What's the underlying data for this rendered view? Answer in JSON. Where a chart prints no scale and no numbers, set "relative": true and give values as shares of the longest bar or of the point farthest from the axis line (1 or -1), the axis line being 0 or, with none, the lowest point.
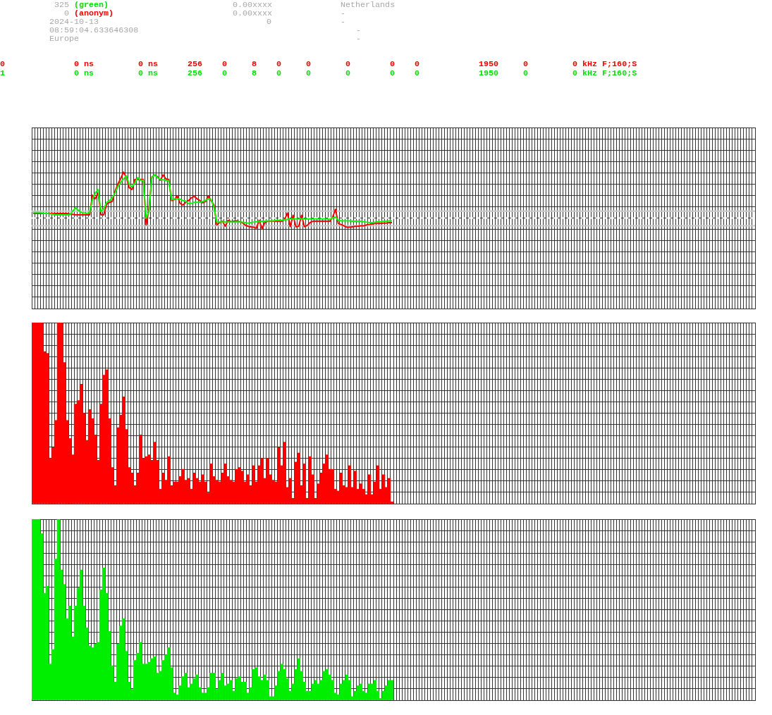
{
  "chart_data": [
    {
      "type": "other",
      "annotations": [
        "325",
        "(green)",
        "0",
        "(anonym)",
        "2024-10-13",
        "08:59:04.633646308",
        "Europe",
        "0.00xxxx",
        "0.00xxxx",
        "0",
        "Netherlands",
        "-",
        "-",
        "-",
        "-",
        "0",
        "0 ns",
        "0 ns",
        "256",
        "0",
        "8",
        "0",
        "0",
        "0",
        "0",
        "0",
        "1950",
        "0",
        "0 kHz F;160;S",
        "1",
        "0 ns",
        "0 ns",
        "256",
        "0",
        "8",
        "0",
        "0",
        "0",
        "0",
        "0",
        "1950",
        "0",
        "0 kHz F;160;S"
      ]
    },
    {
      "type": "line",
      "relative": true,
      "grid": true,
      "tick_labels": false,
      "ref_lines": [
        {
          "axis": "y",
          "value": 0,
          "color": "#ffffff",
          "line_style": "dashed"
        },
        {
          "axis": "y",
          "value": 0.15,
          "color": "#c8c8c8",
          "line_style": "solid"
        },
        {
          "axis": "y",
          "value": -0.17,
          "color": "#c8c8c8",
          "line_style": "solid"
        }
      ],
      "categories": [
        null,
        null,
        null,
        null,
        null,
        null,
        null,
        null,
        null,
        null,
        null,
        null,
        null,
        null,
        null,
        null,
        null,
        null,
        null,
        null,
        null,
        null,
        null,
        null,
        null,
        null,
        null,
        null,
        null,
        null,
        null,
        null,
        null,
        null,
        null,
        null,
        null,
        null,
        null,
        null,
        null,
        null,
        null,
        null,
        null,
        null,
        null,
        null,
        null,
        null,
        null,
        null,
        null,
        null,
        null,
        null,
        null,
        null,
        null,
        null,
        null,
        null,
        null,
        null,
        null,
        null,
        null,
        null,
        null,
        null,
        null,
        null,
        null,
        null,
        null,
        null,
        null,
        null,
        null,
        null,
        null,
        null,
        null,
        null,
        null,
        null,
        null,
        null,
        null,
        null,
        null,
        null,
        null,
        null,
        null,
        null,
        null,
        null,
        null,
        null,
        null,
        null,
        null,
        null,
        null,
        null,
        null,
        null,
        null,
        null,
        null,
        null,
        null,
        null,
        null,
        null,
        null,
        null,
        null,
        null,
        null,
        null,
        null,
        null,
        null,
        null,
        null,
        null,
        null,
        null,
        null,
        null,
        null,
        null,
        null,
        null,
        null,
        null,
        null,
        null,
        null,
        null,
        null,
        null,
        null,
        null,
        null,
        null,
        null,
        null,
        null,
        null,
        null,
        null,
        null,
        null,
        null,
        null,
        null,
        null,
        null,
        null,
        null,
        null,
        null,
        null,
        null,
        null,
        null,
        null,
        null,
        null,
        null,
        null,
        null,
        null,
        null,
        null,
        null,
        null,
        null,
        null,
        null,
        null,
        null,
        null,
        null,
        null,
        null,
        null,
        null,
        null,
        null,
        null,
        null,
        null,
        null,
        null,
        null,
        null,
        null,
        null,
        null,
        null,
        null,
        null,
        null,
        null,
        null,
        null,
        null,
        null,
        null,
        null,
        null,
        null,
        null,
        null,
        null,
        null,
        null,
        null,
        null,
        null,
        null,
        null,
        null,
        null,
        null,
        null,
        null,
        null,
        null,
        null,
        null,
        null,
        null,
        null,
        null,
        null,
        null,
        null,
        null,
        null,
        null,
        null,
        null,
        null,
        null,
        null,
        null,
        null,
        null,
        null,
        null,
        null
      ],
      "series": [
        {
          "color": "#ff0000",
          "values": [
            0.1,
            0.1,
            0.1,
            0.1,
            0.1,
            0.1,
            0.1,
            0.1,
            0.1,
            0.1,
            0.1,
            0.1,
            0.1,
            0.09,
            0.08,
            0.07,
            0.07,
            0.07,
            0.07,
            0.07,
            0.07,
            0.5,
            0.42,
            0.55,
            0.07,
            0.07,
            0.3,
            0.34,
            0.36,
            0.58,
            0.74,
            0.86,
            1,
            0.88,
            0.66,
            0.62,
            0.84,
            0.84,
            0.84,
            0.84,
            -0.15,
            0.2,
            0.89,
            0.94,
            0.9,
            0.82,
            0.94,
            0.85,
            0.84,
            0.38,
            0.4,
            0.48,
            0.32,
            0.28,
            0.34,
            0.38,
            0.44,
            0.47,
            0.42,
            0.38,
            0.33,
            0.36,
            0.48,
            0.38,
            0.28,
            -0.15,
            -0.1,
            -0.07,
            -0.18,
            -0.05,
            -0.08,
            -0.07,
            -0.06,
            -0.08,
            -0.1,
            -0.15,
            -0.18,
            -0.19,
            -0.2,
            -0.22,
            -0.05,
            -0.23,
            -0.1,
            -0.07,
            -0.07,
            -0.07,
            -0.07,
            -0.07,
            -0.07,
            -0.03,
            0.11,
            -0.19,
            0.06,
            -0.19,
            -0.18,
            0.06,
            -0.19,
            -0.16,
            -0.1,
            -0.07,
            -0.07,
            -0.07,
            -0.07,
            -0.07,
            -0.07,
            -0.07,
            0.02,
            0.19,
            -0.12,
            -0.14,
            -0.17,
            -0.2,
            -0.2,
            -0.19,
            -0.18,
            -0.18,
            -0.17,
            -0.17,
            -0.15,
            -0.14,
            -0.13,
            -0.12,
            -0.12,
            -0.12,
            -0.11,
            -0.11,
            -0.1,
            -0.1,
            null,
            null,
            null,
            null,
            null,
            null,
            null,
            null,
            null,
            null,
            null,
            null,
            null,
            null,
            null,
            null,
            null,
            null,
            null,
            null,
            null,
            null,
            null,
            null,
            null,
            null,
            null,
            null,
            null,
            null,
            null,
            null,
            null,
            null,
            null,
            null,
            null,
            null,
            null,
            null,
            null,
            null,
            null,
            null,
            null,
            null,
            null,
            null,
            null,
            null,
            null,
            null,
            null,
            null,
            null,
            null,
            null,
            null,
            null,
            null,
            null,
            null,
            null,
            null,
            null,
            null,
            null,
            null,
            null,
            null,
            null,
            null,
            null,
            null,
            null,
            null,
            null,
            null,
            null,
            null,
            null,
            null,
            null,
            null,
            null,
            null,
            null,
            null,
            null,
            null,
            null,
            null,
            null,
            null,
            null,
            null,
            null,
            null,
            null,
            null,
            null,
            null,
            null,
            null,
            null,
            null,
            null,
            null,
            null,
            null,
            null,
            null,
            null,
            null,
            null,
            null,
            null,
            null,
            null,
            null,
            null,
            null,
            null,
            null,
            null,
            null,
            null,
            null
          ]
        },
        {
          "color": "#00ff00",
          "values": [
            0.12,
            0.12,
            0.12,
            0.11,
            0.1,
            0.1,
            0.09,
            0.08,
            0.07,
            0.07,
            0.07,
            0.07,
            0.07,
            0.07,
            0.15,
            0.22,
            0.17,
            0.12,
            0.11,
            0.1,
            0.12,
            0.4,
            0.55,
            0.62,
            0.14,
            0.2,
            0.34,
            0.38,
            0.44,
            0.55,
            0.68,
            0.78,
            0.85,
            0.92,
            0.74,
            0.68,
            0.76,
            0.88,
            0.82,
            0.82,
            0.0,
            0.14,
            0.88,
            0.94,
            0.88,
            0.84,
            0.83,
            0.82,
            0.81,
            0.4,
            0.41,
            0.42,
            0.41,
            0.38,
            0.37,
            0.31,
            0.32,
            0.34,
            0.34,
            0.34,
            0.36,
            0.38,
            0.42,
            0.4,
            0.24,
            -0.09,
            -0.09,
            -0.09,
            -0.09,
            -0.09,
            -0.09,
            -0.09,
            -0.09,
            -0.09,
            -0.09,
            -0.1,
            -0.11,
            -0.1,
            -0.09,
            -0.08,
            -0.08,
            -0.07,
            -0.07,
            -0.06,
            -0.06,
            -0.06,
            -0.05,
            -0.05,
            -0.05,
            -0.04,
            -0.03,
            -0.02,
            -0.02,
            -0.02,
            -0.02,
            -0.02,
            -0.02,
            -0.02,
            -0.02,
            -0.02,
            -0.02,
            -0.02,
            -0.02,
            -0.02,
            -0.02,
            -0.03,
            0.0,
            0.02,
            -0.05,
            -0.06,
            -0.06,
            -0.06,
            -0.06,
            -0.07,
            -0.07,
            -0.07,
            -0.07,
            -0.08,
            -0.09,
            -0.1,
            -0.1,
            -0.09,
            -0.08,
            -0.08,
            -0.07,
            -0.07,
            -0.06,
            -0.06,
            null,
            null,
            null,
            null,
            null,
            null,
            null,
            null,
            null,
            null,
            null,
            null,
            null,
            null,
            null,
            null,
            null,
            null,
            null,
            null,
            null,
            null,
            null,
            null,
            null,
            null,
            null,
            null,
            null,
            null,
            null,
            null,
            null,
            null,
            null,
            null,
            null,
            null,
            null,
            null,
            null,
            null,
            null,
            null,
            null,
            null,
            null,
            null,
            null,
            null,
            null,
            null,
            null,
            null,
            null,
            null,
            null,
            null,
            null,
            null,
            null,
            null,
            null,
            null,
            null,
            null,
            null,
            null,
            null,
            null,
            null,
            null,
            null,
            null,
            null,
            null,
            null,
            null,
            null,
            null,
            null,
            null,
            null,
            null,
            null,
            null,
            null,
            null,
            null,
            null,
            null,
            null,
            null,
            null,
            null,
            null,
            null,
            null,
            null,
            null,
            null,
            null,
            null,
            null,
            null,
            null,
            null,
            null,
            null,
            null,
            null,
            null,
            null,
            null,
            null,
            null,
            null,
            null,
            null,
            null,
            null,
            null,
            null,
            null,
            null,
            null,
            null,
            null
          ]
        }
      ]
    },
    {
      "type": "bar",
      "relative": true,
      "grid": true,
      "tick_labels": false,
      "color": "#ff0000",
      "categories": [
        null,
        null,
        null,
        null,
        null,
        null,
        null,
        null,
        null,
        null,
        null,
        null,
        null,
        null,
        null,
        null,
        null,
        null,
        null,
        null,
        null,
        null,
        null,
        null,
        null,
        null,
        null,
        null,
        null,
        null,
        null,
        null,
        null,
        null,
        null,
        null,
        null,
        null,
        null,
        null,
        null,
        null,
        null,
        null,
        null,
        null,
        null,
        null,
        null,
        null,
        null,
        null,
        null,
        null,
        null,
        null,
        null,
        null,
        null,
        null,
        null,
        null,
        null,
        null,
        null,
        null,
        null,
        null,
        null,
        null,
        null,
        null,
        null,
        null,
        null,
        null,
        null,
        null,
        null,
        null,
        null,
        null,
        null,
        null,
        null,
        null,
        null,
        null,
        null,
        null,
        null,
        null,
        null,
        null,
        null,
        null,
        null,
        null,
        null,
        null,
        null,
        null,
        null,
        null,
        null,
        null,
        null,
        null,
        null,
        null,
        null,
        null,
        null,
        null,
        null,
        null,
        null,
        null,
        null,
        null,
        null,
        null,
        null,
        null,
        null,
        null,
        null,
        null,
        null,
        null,
        null,
        null,
        null,
        null,
        null,
        null,
        null,
        null,
        null,
        null,
        null,
        null,
        null,
        null,
        null,
        null,
        null,
        null,
        null,
        null,
        null,
        null,
        null,
        null,
        null,
        null,
        null,
        null,
        null,
        null,
        null,
        null,
        null,
        null,
        null,
        null,
        null,
        null,
        null,
        null,
        null,
        null,
        null,
        null,
        null,
        null,
        null,
        null,
        null,
        null,
        null,
        null,
        null,
        null,
        null,
        null,
        null,
        null,
        null,
        null,
        null,
        null,
        null,
        null,
        null,
        null,
        null,
        null,
        null,
        null,
        null,
        null,
        null,
        null,
        null,
        null,
        null,
        null,
        null,
        null,
        null,
        null,
        null,
        null,
        null,
        null,
        null,
        null,
        null,
        null,
        null,
        null,
        null,
        null,
        null,
        null,
        null,
        null,
        null,
        null,
        null,
        null,
        null,
        null,
        null,
        null,
        null,
        null,
        null,
        null,
        null,
        null,
        null,
        null,
        null,
        null,
        null,
        null,
        null,
        null,
        null,
        null,
        null,
        null,
        null,
        null
      ],
      "values": [
        1,
        1,
        1,
        1,
        0.84,
        0.83,
        0.25,
        0.31,
        0.46,
        1,
        1,
        0.78,
        0.46,
        0.36,
        0.27,
        0.55,
        0.57,
        0.66,
        0.5,
        0.35,
        0.52,
        0.47,
        0.38,
        0.24,
        0.55,
        0.71,
        0.74,
        0.47,
        0.2,
        0.1,
        0.42,
        0.49,
        0.59,
        0.41,
        0.2,
        0.17,
        0.1,
        0.17,
        0.38,
        0.25,
        0.26,
        0.27,
        0.24,
        0.34,
        0.24,
        0.08,
        0.17,
        0.13,
        0.26,
        0.1,
        0.12,
        0.12,
        0.15,
        0.19,
        0.13,
        0.14,
        0.08,
        0.17,
        0.14,
        0.12,
        0.16,
        0.12,
        0.06,
        0.22,
        0.15,
        0.13,
        0.12,
        0.17,
        0.22,
        0.15,
        0.13,
        0.12,
        0.19,
        0.2,
        0.18,
        0.12,
        0.16,
        0.1,
        0.21,
        0.12,
        0.21,
        0.25,
        0.14,
        0.25,
        0.16,
        0.13,
        0.12,
        0.31,
        0.21,
        0.34,
        0.09,
        0.14,
        0.03,
        0.23,
        0.28,
        0.1,
        0.22,
        0.03,
        0.26,
        0.16,
        0.03,
        0.11,
        0.17,
        0.22,
        0.27,
        0.19,
        0.19,
        0.08,
        0.07,
        0.17,
        0.1,
        0.09,
        0.21,
        0.09,
        0.18,
        0.08,
        0.11,
        0.08,
        0.05,
        0.16,
        0.05,
        0.12,
        0.21,
        0.08,
        0.16,
        0.09,
        0.14,
        0.01,
        null,
        null,
        null,
        null,
        null,
        null,
        null,
        null,
        null,
        null,
        null,
        null,
        null,
        null,
        null,
        null,
        null,
        null,
        null,
        null,
        null,
        null,
        null,
        null,
        null,
        null,
        null,
        null,
        null,
        null,
        null,
        null,
        null,
        null,
        null,
        null,
        null,
        null,
        null,
        null,
        null,
        null,
        null,
        null,
        null,
        null,
        null,
        null,
        null,
        null,
        null,
        null,
        null,
        null,
        null,
        null,
        null,
        null,
        null,
        null,
        null,
        null,
        null,
        null,
        null,
        null,
        null,
        null,
        null,
        null,
        null,
        null,
        null,
        null,
        null,
        null,
        null,
        null,
        null,
        null,
        null,
        null,
        null,
        null,
        null,
        null,
        null,
        null,
        null,
        null,
        null,
        null,
        null,
        null,
        null,
        null,
        null,
        null,
        null,
        null,
        null,
        null,
        null,
        null,
        null,
        null,
        null,
        null,
        null,
        null,
        null,
        null,
        null,
        null,
        null,
        null,
        null,
        null,
        null,
        null,
        null,
        null,
        null,
        null,
        null,
        null,
        null,
        null
      ]
    },
    {
      "type": "bar",
      "relative": true,
      "grid": true,
      "tick_labels": false,
      "color": "#00ee00",
      "categories": [
        null,
        null,
        null,
        null,
        null,
        null,
        null,
        null,
        null,
        null,
        null,
        null,
        null,
        null,
        null,
        null,
        null,
        null,
        null,
        null,
        null,
        null,
        null,
        null,
        null,
        null,
        null,
        null,
        null,
        null,
        null,
        null,
        null,
        null,
        null,
        null,
        null,
        null,
        null,
        null,
        null,
        null,
        null,
        null,
        null,
        null,
        null,
        null,
        null,
        null,
        null,
        null,
        null,
        null,
        null,
        null,
        null,
        null,
        null,
        null,
        null,
        null,
        null,
        null,
        null,
        null,
        null,
        null,
        null,
        null,
        null,
        null,
        null,
        null,
        null,
        null,
        null,
        null,
        null,
        null,
        null,
        null,
        null,
        null,
        null,
        null,
        null,
        null,
        null,
        null,
        null,
        null,
        null,
        null,
        null,
        null,
        null,
        null,
        null,
        null,
        null,
        null,
        null,
        null,
        null,
        null,
        null,
        null,
        null,
        null,
        null,
        null,
        null,
        null,
        null,
        null,
        null,
        null,
        null,
        null,
        null,
        null,
        null,
        null,
        null,
        null,
        null,
        null,
        null,
        null,
        null,
        null,
        null,
        null,
        null,
        null,
        null,
        null,
        null,
        null,
        null,
        null,
        null,
        null,
        null,
        null,
        null,
        null,
        null,
        null,
        null,
        null,
        null,
        null,
        null,
        null,
        null,
        null,
        null,
        null,
        null,
        null,
        null,
        null,
        null,
        null,
        null,
        null,
        null,
        null,
        null,
        null,
        null,
        null,
        null,
        null,
        null,
        null,
        null,
        null,
        null,
        null,
        null,
        null,
        null,
        null,
        null,
        null,
        null,
        null,
        null,
        null,
        null,
        null,
        null,
        null,
        null,
        null,
        null,
        null,
        null,
        null,
        null,
        null,
        null,
        null,
        null,
        null,
        null,
        null,
        null,
        null,
        null,
        null,
        null,
        null,
        null,
        null,
        null,
        null,
        null,
        null,
        null,
        null,
        null,
        null,
        null,
        null,
        null,
        null,
        null,
        null,
        null,
        null,
        null,
        null,
        null,
        null,
        null,
        null,
        null,
        null,
        null,
        null,
        null,
        null,
        null,
        null,
        null,
        null,
        null,
        null,
        null,
        null,
        null,
        null
      ],
      "values": [
        1,
        1,
        1,
        0.92,
        0.59,
        0.63,
        0.2,
        0.28,
        0.78,
        1,
        0.72,
        0.64,
        0.45,
        0.52,
        0.35,
        0.52,
        0.62,
        0.72,
        0.52,
        0.4,
        0.3,
        0.29,
        0.31,
        0.32,
        0.61,
        0.73,
        0.59,
        0.38,
        0.19,
        0.1,
        0.31,
        0.41,
        0.45,
        0.27,
        0.1,
        0.06,
        0.22,
        0.26,
        0.32,
        0.2,
        0.2,
        0.21,
        0.23,
        0.24,
        0.15,
        0.16,
        0.22,
        0.25,
        0.29,
        0.18,
        0.04,
        0.03,
        0.08,
        0.13,
        0.15,
        0.07,
        0.09,
        0.12,
        0.14,
        0.07,
        0.04,
        0.04,
        0.07,
        0.15,
        0.15,
        0.06,
        0.11,
        0.15,
        0.08,
        0.09,
        0.11,
        0.05,
        0.12,
        0.13,
        0.1,
        0.1,
        0.04,
        0.07,
        0.17,
        0.18,
        0.13,
        0.11,
        0.14,
        0.11,
        0.02,
        0.02,
        0.08,
        0.16,
        0.2,
        0.17,
        0.12,
        0.05,
        0.09,
        0.17,
        0.23,
        0.16,
        0.1,
        0.05,
        0.05,
        0.09,
        0.11,
        0.09,
        0.11,
        0.16,
        0.17,
        0.14,
        0.11,
        0.04,
        0.03,
        0.09,
        0.11,
        0.14,
        0.11,
        0.02,
        0.05,
        0.08,
        0.09,
        0.05,
        0.04,
        0.09,
        0.09,
        0.11,
        0.05,
        0.01,
        0.05,
        0.08,
        0.11,
        0.11,
        null,
        null,
        null,
        null,
        null,
        null,
        null,
        null,
        null,
        null,
        null,
        null,
        null,
        null,
        null,
        null,
        null,
        null,
        null,
        null,
        null,
        null,
        null,
        null,
        null,
        null,
        null,
        null,
        null,
        null,
        null,
        null,
        null,
        null,
        null,
        null,
        null,
        null,
        null,
        null,
        null,
        null,
        null,
        null,
        null,
        null,
        null,
        null,
        null,
        null,
        null,
        null,
        null,
        null,
        null,
        null,
        null,
        null,
        null,
        null,
        null,
        null,
        null,
        null,
        null,
        null,
        null,
        null,
        null,
        null,
        null,
        null,
        null,
        null,
        null,
        null,
        null,
        null,
        null,
        null,
        null,
        null,
        null,
        null,
        null,
        null,
        null,
        null,
        null,
        null,
        null,
        null,
        null,
        null,
        null,
        null,
        null,
        null,
        null,
        null,
        null,
        null,
        null,
        null,
        null,
        null,
        null,
        null,
        null,
        null,
        null,
        null,
        null,
        null,
        null,
        null,
        null,
        null,
        null,
        null,
        null,
        null,
        null,
        null,
        null,
        null,
        null,
        null
      ]
    }
  ]
}
